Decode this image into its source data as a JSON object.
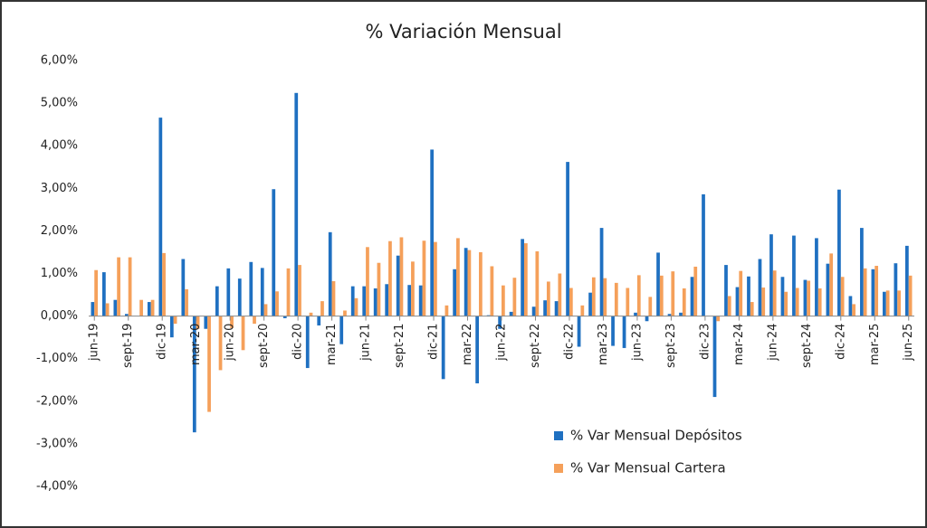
{
  "chart_data": {
    "type": "bar",
    "title": "% Variación Mensual",
    "categories": [
      "jun-19",
      null,
      null,
      "sept-19",
      null,
      null,
      "dic-19",
      null,
      null,
      "mar-20",
      null,
      null,
      "jun-20",
      null,
      null,
      "sept-20",
      null,
      null,
      "dic-20",
      null,
      null,
      "mar-21",
      null,
      null,
      "jun-21",
      null,
      null,
      "sept-21",
      null,
      null,
      "dic-21",
      null,
      null,
      "mar-22",
      null,
      null,
      "jun-22",
      null,
      null,
      "sept-22",
      null,
      null,
      "dic-22",
      null,
      null,
      "mar-23",
      null,
      null,
      "jun-23",
      null,
      null,
      "sept-23",
      null,
      null,
      "dic-23",
      null,
      null,
      "mar-24",
      null,
      null,
      "jun-24",
      null,
      null,
      "sept-24",
      null,
      null,
      "dic-24",
      null,
      null,
      "mar-25",
      null,
      null,
      "jun-25"
    ],
    "series": [
      {
        "name": "% Var Mensual Depósitos",
        "color": "#1f70c1",
        "values": [
          0.33,
          1.03,
          0.38,
          0.05,
          0.0,
          0.33,
          4.66,
          -0.5,
          1.34,
          -2.73,
          -0.3,
          0.7,
          1.12,
          0.88,
          1.27,
          1.13,
          2.98,
          -0.05,
          5.24,
          -1.22,
          -0.22,
          1.97,
          -0.66,
          0.7,
          0.7,
          0.65,
          0.75,
          1.42,
          0.73,
          0.72,
          3.91,
          -1.48,
          1.1,
          1.6,
          -1.58,
          0.02,
          -0.3,
          0.1,
          1.81,
          0.22,
          0.37,
          0.35,
          3.62,
          -0.72,
          0.55,
          2.07,
          -0.7,
          -0.75,
          0.08,
          -0.12,
          1.49,
          0.05,
          0.08,
          0.92,
          2.86,
          -1.9,
          1.2,
          0.68,
          0.93,
          1.34,
          1.92,
          0.92,
          1.89,
          0.85,
          1.83,
          1.23,
          2.97,
          0.47,
          2.07,
          1.1,
          0.57,
          1.24,
          1.65
        ]
      },
      {
        "name": "% Var Mensual Cartera",
        "color": "#f5a05a",
        "values": [
          1.08,
          0.3,
          1.38,
          1.38,
          0.38,
          0.38,
          1.48,
          -0.18,
          0.63,
          -0.3,
          -2.25,
          -1.27,
          -0.28,
          -0.8,
          -0.18,
          0.28,
          0.58,
          1.12,
          1.2,
          0.08,
          0.35,
          0.82,
          0.13,
          0.42,
          1.62,
          1.25,
          1.76,
          1.85,
          1.28,
          1.77,
          1.74,
          0.25,
          1.83,
          1.55,
          1.5,
          1.17,
          0.72,
          0.9,
          1.71,
          1.52,
          0.81,
          1.0,
          0.66,
          0.25,
          0.91,
          0.89,
          0.78,
          0.66,
          0.96,
          0.45,
          0.95,
          1.05,
          0.65,
          1.16,
          0.0,
          -0.12,
          0.47,
          1.06,
          0.33,
          0.67,
          1.07,
          0.57,
          0.66,
          0.83,
          0.65,
          1.47,
          0.92,
          0.28,
          1.12,
          1.18,
          0.6,
          0.6,
          0.95
        ]
      }
    ],
    "ylim": [
      -4,
      6
    ],
    "yticks": [
      {
        "value": -4,
        "label": "-4,00%"
      },
      {
        "value": -3,
        "label": "-3,00%"
      },
      {
        "value": -2,
        "label": "-2,00%"
      },
      {
        "value": -1,
        "label": "-1,00%"
      },
      {
        "value": 0,
        "label": "0,00%"
      },
      {
        "value": 1,
        "label": "1,00%"
      },
      {
        "value": 2,
        "label": "2,00%"
      },
      {
        "value": 3,
        "label": "3,00%"
      },
      {
        "value": 4,
        "label": "4,00%"
      },
      {
        "value": 5,
        "label": "5,00%"
      },
      {
        "value": 6,
        "label": "6,00%"
      }
    ],
    "grid": false,
    "legend": "bottom"
  }
}
